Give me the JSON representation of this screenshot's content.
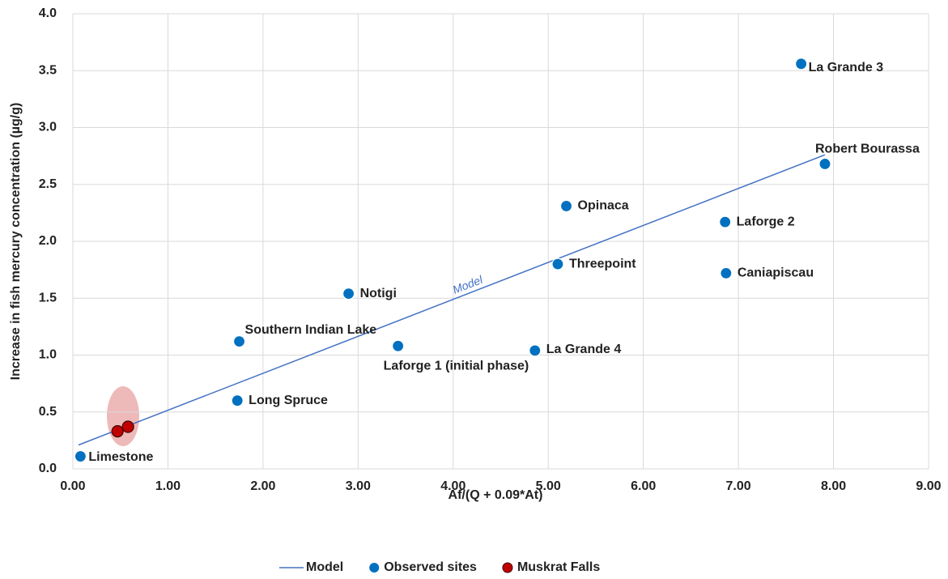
{
  "chart_data": {
    "type": "scatter",
    "xlabel": "Af/(Q + 0.09*At)",
    "ylabel": "Increase in fish mercury concentration (µg/g)",
    "xlim": [
      0,
      9
    ],
    "ylim": [
      0,
      4
    ],
    "xticks": [
      {
        "value": 0,
        "label": "0.00"
      },
      {
        "value": 1,
        "label": "1.00"
      },
      {
        "value": 2,
        "label": "2.00"
      },
      {
        "value": 3,
        "label": "3.00"
      },
      {
        "value": 4,
        "label": "4.00"
      },
      {
        "value": 5,
        "label": "5.00"
      },
      {
        "value": 6,
        "label": "6.00"
      },
      {
        "value": 7,
        "label": "7.00"
      },
      {
        "value": 8,
        "label": "8.00"
      },
      {
        "value": 9,
        "label": "9.00"
      }
    ],
    "yticks": [
      {
        "value": 0,
        "label": "0.0"
      },
      {
        "value": 0.5,
        "label": "0.5"
      },
      {
        "value": 1,
        "label": "1.0"
      },
      {
        "value": 1.5,
        "label": "1.5"
      },
      {
        "value": 2,
        "label": "2.0"
      },
      {
        "value": 2.5,
        "label": "2.5"
      },
      {
        "value": 3,
        "label": "3.0"
      },
      {
        "value": 3.5,
        "label": "3.5"
      },
      {
        "value": 4,
        "label": "4.0"
      }
    ],
    "grid": true,
    "legend": "bottom",
    "series": [
      {
        "name": "Model",
        "type": "line",
        "color": "#4472c4",
        "x": [
          0.06,
          7.91
        ],
        "values": [
          0.21,
          2.76
        ]
      },
      {
        "name": "Observed sites",
        "color": "#0070c0",
        "x": [
          0.08,
          1.73,
          1.75,
          2.9,
          3.42,
          4.86,
          5.1,
          5.19,
          6.86,
          6.87,
          7.66,
          7.91
        ],
        "values": [
          0.11,
          0.6,
          1.12,
          1.54,
          1.08,
          1.04,
          1.8,
          2.31,
          2.17,
          1.72,
          3.56,
          2.68
        ],
        "labels": [
          "Limestone",
          "Long Spruce",
          "Southern Indian Lake",
          "Notigi",
          "Laforge 1 (initial phase)",
          "La Grande 4",
          "Threepoint",
          "Opinaca",
          "Laforge 2",
          "Caniapiscau",
          "La Grande 3",
          "Robert Bourassa"
        ]
      },
      {
        "name": "Muskrat Falls",
        "color": "#c00000",
        "x": [
          0.47,
          0.58
        ],
        "values": [
          0.33,
          0.37
        ]
      }
    ]
  }
}
